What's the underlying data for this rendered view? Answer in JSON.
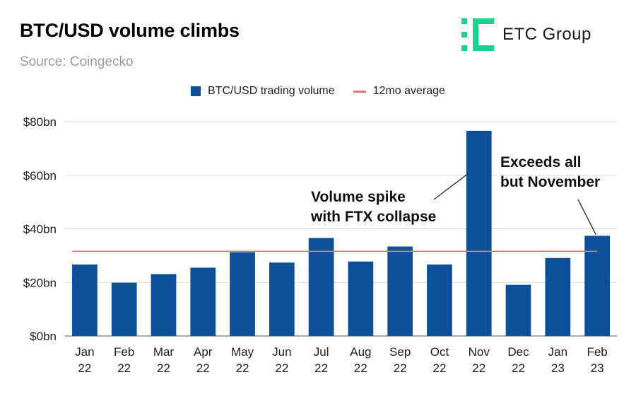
{
  "header": {
    "title": "BTC/USD volume climbs",
    "subtitle": "Source: Coingecko"
  },
  "brand": {
    "name": "ETC Group",
    "mark_color": "#19d38d"
  },
  "colors": {
    "bar": "#0d4f98",
    "average_line": "#e57373",
    "grid": "#dddddd"
  },
  "chart_data": {
    "type": "bar",
    "title": "BTC/USD volume climbs",
    "subtitle": "Source: Coingecko",
    "categories": [
      [
        "Jan",
        "22"
      ],
      [
        "Feb",
        "22"
      ],
      [
        "Mar",
        "22"
      ],
      [
        "Apr",
        "22"
      ],
      [
        "May",
        "22"
      ],
      [
        "Jun",
        "22"
      ],
      [
        "Jul",
        "22"
      ],
      [
        "Aug",
        "22"
      ],
      [
        "Sep",
        "22"
      ],
      [
        "Oct",
        "22"
      ],
      [
        "Nov",
        "22"
      ],
      [
        "Dec",
        "22"
      ],
      [
        "Jan",
        "23"
      ],
      [
        "Feb",
        "23"
      ]
    ],
    "series": [
      {
        "name": "BTC/USD trading volume",
        "values": [
          26.7,
          19.9,
          23.1,
          25.5,
          31.3,
          27.4,
          36.6,
          27.8,
          33.4,
          26.7,
          76.6,
          19.1,
          29.1,
          37.4
        ]
      },
      {
        "name": "12mo average",
        "type": "line",
        "value": 31.6
      }
    ],
    "ylim": [
      0,
      80
    ],
    "yticks": [
      0,
      20,
      40,
      60,
      80
    ],
    "ytick_labels": [
      "$0bn",
      "$20bn",
      "$40bn",
      "$60bn",
      "$80bn"
    ],
    "grid": true,
    "legend": "top",
    "annotations": [
      {
        "lines": [
          "Volume spike",
          "with FTX collapse"
        ],
        "target": "Nov 22"
      },
      {
        "lines": [
          "Exceeds all",
          "but November"
        ],
        "target": "Feb 23"
      }
    ]
  }
}
